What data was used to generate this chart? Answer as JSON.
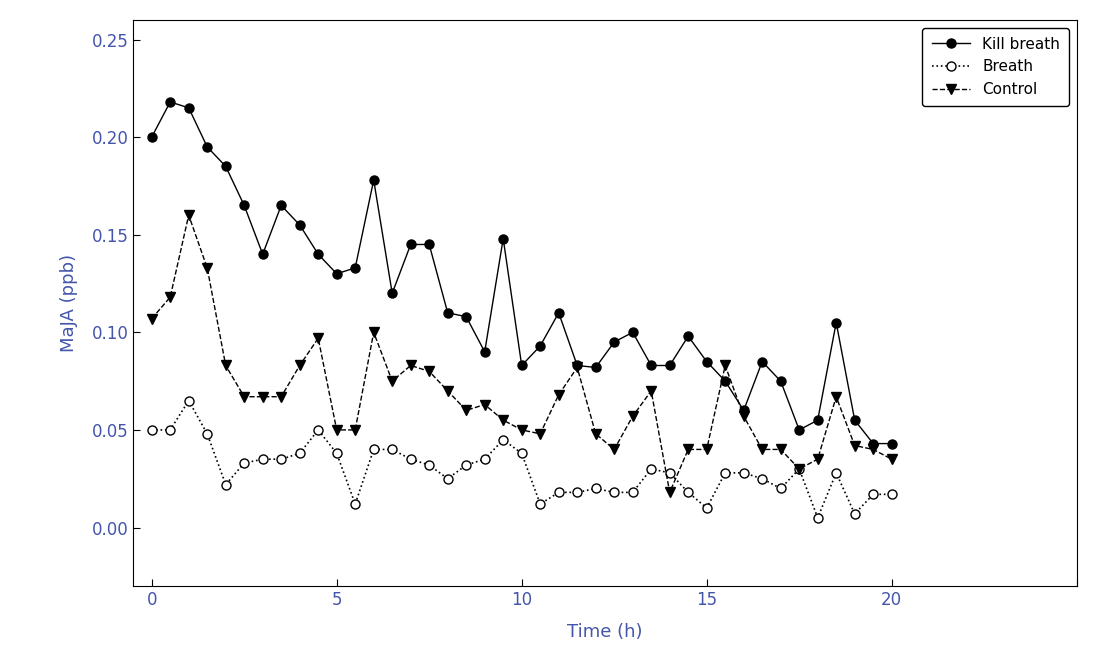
{
  "kill_breath_x": [
    0,
    0.5,
    1,
    1.5,
    2,
    2.5,
    3,
    3.5,
    4,
    4.5,
    5,
    5.5,
    6,
    6.5,
    7,
    7.5,
    8,
    8.5,
    9,
    9.5,
    10,
    10.5,
    11,
    11.5,
    12,
    12.5,
    13,
    13.5,
    14,
    14.5,
    15,
    15.5,
    16,
    16.5,
    17,
    17.5,
    18,
    18.5,
    19,
    19.5,
    20
  ],
  "kill_breath_y": [
    0.2,
    0.218,
    0.215,
    0.195,
    0.185,
    0.165,
    0.14,
    0.165,
    0.155,
    0.14,
    0.13,
    0.133,
    0.178,
    0.12,
    0.145,
    0.145,
    0.11,
    0.108,
    0.09,
    0.148,
    0.083,
    0.093,
    0.11,
    0.083,
    0.082,
    0.095,
    0.1,
    0.083,
    0.083,
    0.098,
    0.085,
    0.075,
    0.06,
    0.085,
    0.075,
    0.05,
    0.055,
    0.105,
    0.055,
    0.043,
    0.043
  ],
  "breath_x": [
    0,
    0.5,
    1,
    1.5,
    2,
    2.5,
    3,
    3.5,
    4,
    4.5,
    5,
    5.5,
    6,
    6.5,
    7,
    7.5,
    8,
    8.5,
    9,
    9.5,
    10,
    10.5,
    11,
    11.5,
    12,
    12.5,
    13,
    13.5,
    14,
    14.5,
    15,
    15.5,
    16,
    16.5,
    17,
    17.5,
    18,
    18.5,
    19,
    19.5,
    20
  ],
  "breath_y": [
    0.05,
    0.05,
    0.065,
    0.048,
    0.022,
    0.033,
    0.035,
    0.035,
    0.038,
    0.05,
    0.038,
    0.012,
    0.04,
    0.04,
    0.035,
    0.032,
    0.025,
    0.032,
    0.035,
    0.045,
    0.038,
    0.012,
    0.018,
    0.018,
    0.02,
    0.018,
    0.018,
    0.03,
    0.028,
    0.018,
    0.01,
    0.028,
    0.028,
    0.025,
    0.02,
    0.03,
    0.005,
    0.028,
    0.007,
    0.017,
    0.017
  ],
  "control_x": [
    0,
    0.5,
    1,
    1.5,
    2,
    2.5,
    3,
    3.5,
    4,
    4.5,
    5,
    5.5,
    6,
    6.5,
    7,
    7.5,
    8,
    8.5,
    9,
    9.5,
    10,
    10.5,
    11,
    11.5,
    12,
    12.5,
    13,
    13.5,
    14,
    14.5,
    15,
    15.5,
    16,
    16.5,
    17,
    17.5,
    18,
    18.5,
    19,
    19.5,
    20
  ],
  "control_y": [
    0.107,
    0.118,
    0.16,
    0.133,
    0.083,
    0.067,
    0.067,
    0.067,
    0.083,
    0.097,
    0.05,
    0.05,
    0.1,
    0.075,
    0.083,
    0.08,
    0.07,
    0.06,
    0.063,
    0.055,
    0.05,
    0.048,
    0.068,
    0.082,
    0.048,
    0.04,
    0.057,
    0.07,
    0.018,
    0.04,
    0.04,
    0.083,
    0.057,
    0.04,
    0.04,
    0.03,
    0.035,
    0.067,
    0.042,
    0.04,
    0.035
  ],
  "xlabel": "Time (h)",
  "ylabel": "MaJA (ppb)",
  "xlim": [
    -0.5,
    25
  ],
  "ylim": [
    -0.03,
    0.26
  ],
  "yticks": [
    0.0,
    0.05,
    0.1,
    0.15,
    0.2,
    0.25
  ],
  "xticks": [
    0,
    5,
    10,
    15,
    20,
    25
  ],
  "xtick_labels": [
    "0",
    "5",
    "10",
    "15",
    "20",
    ""
  ],
  "legend_labels": [
    "Kill breath",
    "Breath",
    "Control"
  ],
  "label_color": "#4455aa",
  "bg_color": "#ffffff"
}
